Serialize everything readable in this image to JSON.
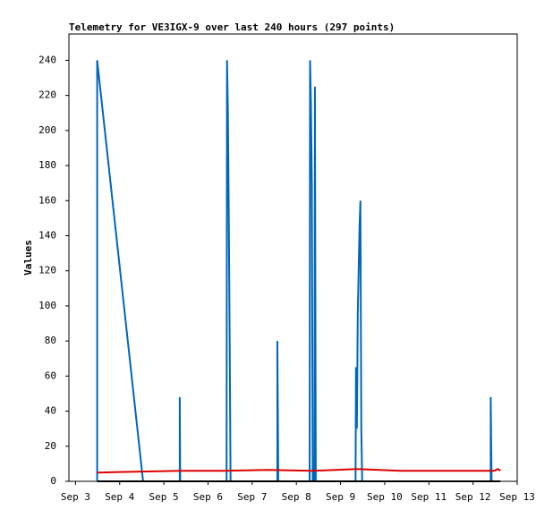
{
  "chart_data": {
    "type": "line",
    "title": "Telemetry for VE3IGX-9 over last 240 hours (297 points)",
    "y_label": "Values",
    "xlim": [
      -0.15,
      10
    ],
    "xticks": [
      {
        "value": 0,
        "label": "Sep 3"
      },
      {
        "value": 1,
        "label": "Sep 4"
      },
      {
        "value": 2,
        "label": "Sep 5"
      },
      {
        "value": 3,
        "label": "Sep 6"
      },
      {
        "value": 4,
        "label": "Sep 7"
      },
      {
        "value": 5,
        "label": "Sep 8"
      },
      {
        "value": 6,
        "label": "Sep 9"
      },
      {
        "value": 7,
        "label": "Sep 10"
      },
      {
        "value": 8,
        "label": "Sep 11"
      },
      {
        "value": 9,
        "label": "Sep 12"
      },
      {
        "value": 10,
        "label": "Sep 13"
      }
    ],
    "ylim": [
      0,
      255
    ],
    "yticks": [
      0,
      20,
      40,
      60,
      80,
      100,
      120,
      140,
      160,
      180,
      200,
      220,
      240
    ],
    "series": [
      {
        "color": "#0066bb",
        "x": [
          0.49,
          0.49,
          1.53,
          2.36,
          2.36,
          2.37,
          3.42,
          3.43,
          3.45,
          3.47,
          3.49,
          3.51,
          3.52,
          4.57,
          4.57,
          4.59,
          5.3,
          5.31,
          5.33,
          5.35,
          5.37,
          5.41,
          5.42,
          5.44,
          6.34,
          6.35,
          6.37,
          6.39,
          6.41,
          6.43,
          6.45,
          6.47,
          6.49,
          9.4,
          9.4,
          9.42
        ],
        "values": [
          0,
          240,
          0,
          0,
          48,
          0,
          0,
          240,
          210,
          150,
          80,
          0,
          0,
          0,
          80,
          0,
          0,
          240,
          215,
          170,
          0,
          0,
          225,
          0,
          0,
          65,
          30,
          95,
          120,
          145,
          160,
          30,
          0,
          0,
          48,
          0
        ]
      },
      {
        "color": "#dd0000",
        "x": [
          0.49,
          1.37,
          2.37,
          3.37,
          4.37,
          5.37,
          6.37,
          7.37,
          8.37,
          9.47,
          9.57,
          9.62
        ],
        "values": [
          5,
          5.5,
          6,
          6,
          6.5,
          6,
          7,
          6,
          6,
          6,
          7,
          6
        ]
      },
      {
        "color": "#000000",
        "x": [
          0.49,
          9.62
        ],
        "values": [
          0,
          0
        ]
      }
    ]
  }
}
